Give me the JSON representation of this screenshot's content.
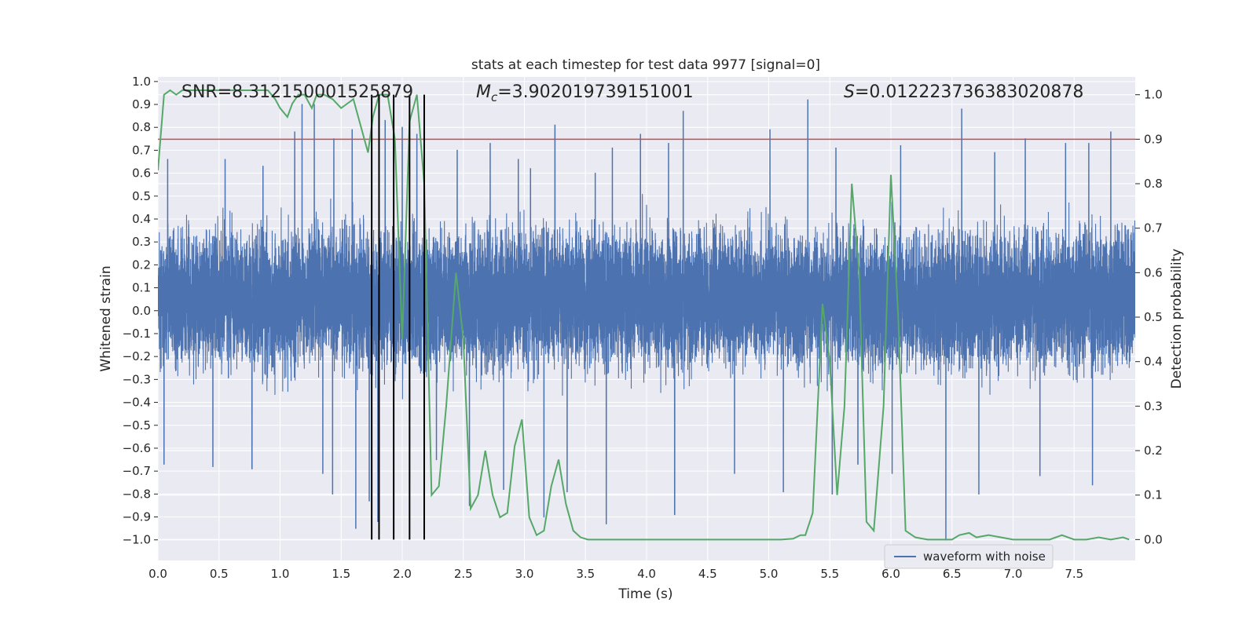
{
  "chart_data": {
    "type": "line",
    "title": "stats at each timestep for test data 9977 [signal=0]",
    "xlabel": "Time (s)",
    "ylabel": "Whitened strain",
    "y2label": "Detection probability",
    "xlim": [
      0.0,
      8.0
    ],
    "ylim": [
      -1.09,
      1.02
    ],
    "y2lim": [
      -0.047,
      1.04
    ],
    "xticks": [
      "0.0",
      "0.5",
      "1.0",
      "1.5",
      "2.0",
      "2.5",
      "3.0",
      "3.5",
      "4.0",
      "4.5",
      "5.0",
      "5.5",
      "6.0",
      "6.5",
      "7.0",
      "7.5"
    ],
    "yticks": [
      "1.0",
      "0.9",
      "0.8",
      "0.7",
      "0.6",
      "0.5",
      "0.4",
      "0.3",
      "0.2",
      "0.1",
      "0.0",
      "−0.1",
      "−0.2",
      "−0.3",
      "−0.4",
      "−0.5",
      "−0.6",
      "−0.7",
      "−0.8",
      "−0.9",
      "−1.0"
    ],
    "y2ticks": [
      "1.0",
      "0.9",
      "0.8",
      "0.7",
      "0.6",
      "0.5",
      "0.4",
      "0.3",
      "0.2",
      "0.1",
      "0.0"
    ],
    "annotations": {
      "snr": "SNR=8.312150001525879",
      "mc_symbol": "M",
      "mc_sub": "c",
      "mc_value": "=3.902019739151001",
      "s_symbol": "S",
      "s_value": "=0.012223736383020878"
    },
    "threshold": 0.9,
    "vlines": [
      1.75,
      1.81,
      1.93,
      2.06,
      2.18
    ],
    "legend": [
      "waveform with noise"
    ],
    "colors": {
      "strain": "#4c72b0",
      "probability": "#55a868",
      "threshold": "#c44e52",
      "vline": "#000000",
      "axes_bg": "#eaeaf2",
      "grid": "#ffffff"
    },
    "series": [
      {
        "name": "waveform with noise",
        "axis": "left",
        "sample_rate_hz": 2048,
        "envelope_spikes_top": [
          [
            0.08,
            0.66
          ],
          [
            0.55,
            0.66
          ],
          [
            0.86,
            0.63
          ],
          [
            1.12,
            0.78
          ],
          [
            1.18,
            0.9
          ],
          [
            1.28,
            0.9
          ],
          [
            1.44,
            0.75
          ],
          [
            1.59,
            0.79
          ],
          [
            1.73,
            0.75
          ],
          [
            1.86,
            0.83
          ],
          [
            2.0,
            0.8
          ],
          [
            2.12,
            0.77
          ],
          [
            2.28,
            0.79
          ],
          [
            2.45,
            0.7
          ],
          [
            2.72,
            0.73
          ],
          [
            2.95,
            0.66
          ],
          [
            3.05,
            0.62
          ],
          [
            3.25,
            0.81
          ],
          [
            3.58,
            0.6
          ],
          [
            3.72,
            0.71
          ],
          [
            3.95,
            0.77
          ],
          [
            4.18,
            0.73
          ],
          [
            4.3,
            0.87
          ],
          [
            4.72,
            0.75
          ],
          [
            5.01,
            0.79
          ],
          [
            5.32,
            0.92
          ],
          [
            5.55,
            0.71
          ],
          [
            6.08,
            0.72
          ],
          [
            6.58,
            0.88
          ],
          [
            6.85,
            0.69
          ],
          [
            7.1,
            0.75
          ],
          [
            7.43,
            0.73
          ],
          [
            7.62,
            0.73
          ],
          [
            7.8,
            0.78
          ]
        ],
        "envelope_spikes_bottom": [
          [
            0.05,
            -0.67
          ],
          [
            0.45,
            -0.68
          ],
          [
            0.77,
            -0.69
          ],
          [
            1.35,
            -0.71
          ],
          [
            1.43,
            -0.8
          ],
          [
            1.62,
            -0.95
          ],
          [
            1.73,
            -0.83
          ],
          [
            1.8,
            -0.92
          ],
          [
            2.06,
            -0.76
          ],
          [
            2.28,
            -0.65
          ],
          [
            2.55,
            -0.85
          ],
          [
            2.83,
            -0.78
          ],
          [
            3.16,
            -0.9
          ],
          [
            3.35,
            -0.79
          ],
          [
            3.67,
            -0.93
          ],
          [
            4.23,
            -0.89
          ],
          [
            4.72,
            -0.71
          ],
          [
            5.12,
            -0.79
          ],
          [
            5.52,
            -0.8
          ],
          [
            5.73,
            -0.67
          ],
          [
            6.01,
            -0.71
          ],
          [
            6.45,
            -1.0
          ],
          [
            6.72,
            -0.8
          ],
          [
            7.22,
            -0.72
          ],
          [
            7.65,
            -0.76
          ]
        ]
      },
      {
        "name": "detection probability",
        "axis": "right",
        "x": [
          0.0,
          0.05,
          0.1,
          0.15,
          0.2,
          0.3,
          0.4,
          0.5,
          0.6,
          0.7,
          0.8,
          0.9,
          0.96,
          1.0,
          1.06,
          1.1,
          1.15,
          1.2,
          1.26,
          1.3,
          1.36,
          1.43,
          1.5,
          1.55,
          1.6,
          1.66,
          1.72,
          1.76,
          1.81,
          1.88,
          1.94,
          2.0,
          2.06,
          2.12,
          2.18,
          2.24,
          2.3,
          2.36,
          2.44,
          2.5,
          2.56,
          2.62,
          2.68,
          2.74,
          2.8,
          2.86,
          2.92,
          2.98,
          3.04,
          3.1,
          3.16,
          3.22,
          3.28,
          3.34,
          3.4,
          3.46,
          3.52,
          3.6,
          3.7,
          3.8,
          4.0,
          4.2,
          4.4,
          4.6,
          4.8,
          5.0,
          5.1,
          5.2,
          5.26,
          5.3,
          5.36,
          5.44,
          5.5,
          5.56,
          5.62,
          5.68,
          5.74,
          5.8,
          5.86,
          5.94,
          6.0,
          6.06,
          6.12,
          6.2,
          6.3,
          6.4,
          6.5,
          6.56,
          6.64,
          6.7,
          6.8,
          6.9,
          7.0,
          7.1,
          7.2,
          7.3,
          7.4,
          7.5,
          7.6,
          7.7,
          7.8,
          7.9,
          7.95
        ],
        "y": [
          0.83,
          1.0,
          1.01,
          1.0,
          1.01,
          1.01,
          1.01,
          1.01,
          1.01,
          1.01,
          1.01,
          1.01,
          0.99,
          0.97,
          0.95,
          0.98,
          1.0,
          1.0,
          0.97,
          1.0,
          1.0,
          0.99,
          0.97,
          0.98,
          0.99,
          0.93,
          0.87,
          0.95,
          1.0,
          1.0,
          0.9,
          0.45,
          0.94,
          1.0,
          0.8,
          0.1,
          0.12,
          0.3,
          0.6,
          0.45,
          0.07,
          0.1,
          0.2,
          0.1,
          0.05,
          0.06,
          0.21,
          0.27,
          0.05,
          0.01,
          0.02,
          0.12,
          0.18,
          0.08,
          0.02,
          0.005,
          0.0,
          0.0,
          0.0,
          0.0,
          0.0,
          0.0,
          0.0,
          0.0,
          0.0,
          0.0,
          0.0,
          0.002,
          0.01,
          0.01,
          0.06,
          0.53,
          0.4,
          0.1,
          0.3,
          0.8,
          0.6,
          0.04,
          0.02,
          0.3,
          0.82,
          0.5,
          0.02,
          0.005,
          0.0,
          0.0,
          0.0,
          0.01,
          0.015,
          0.005,
          0.01,
          0.005,
          0.0,
          0.0,
          0.0,
          0.0,
          0.01,
          0.0,
          0.0,
          0.005,
          0.0,
          0.005,
          0.0
        ]
      }
    ]
  }
}
